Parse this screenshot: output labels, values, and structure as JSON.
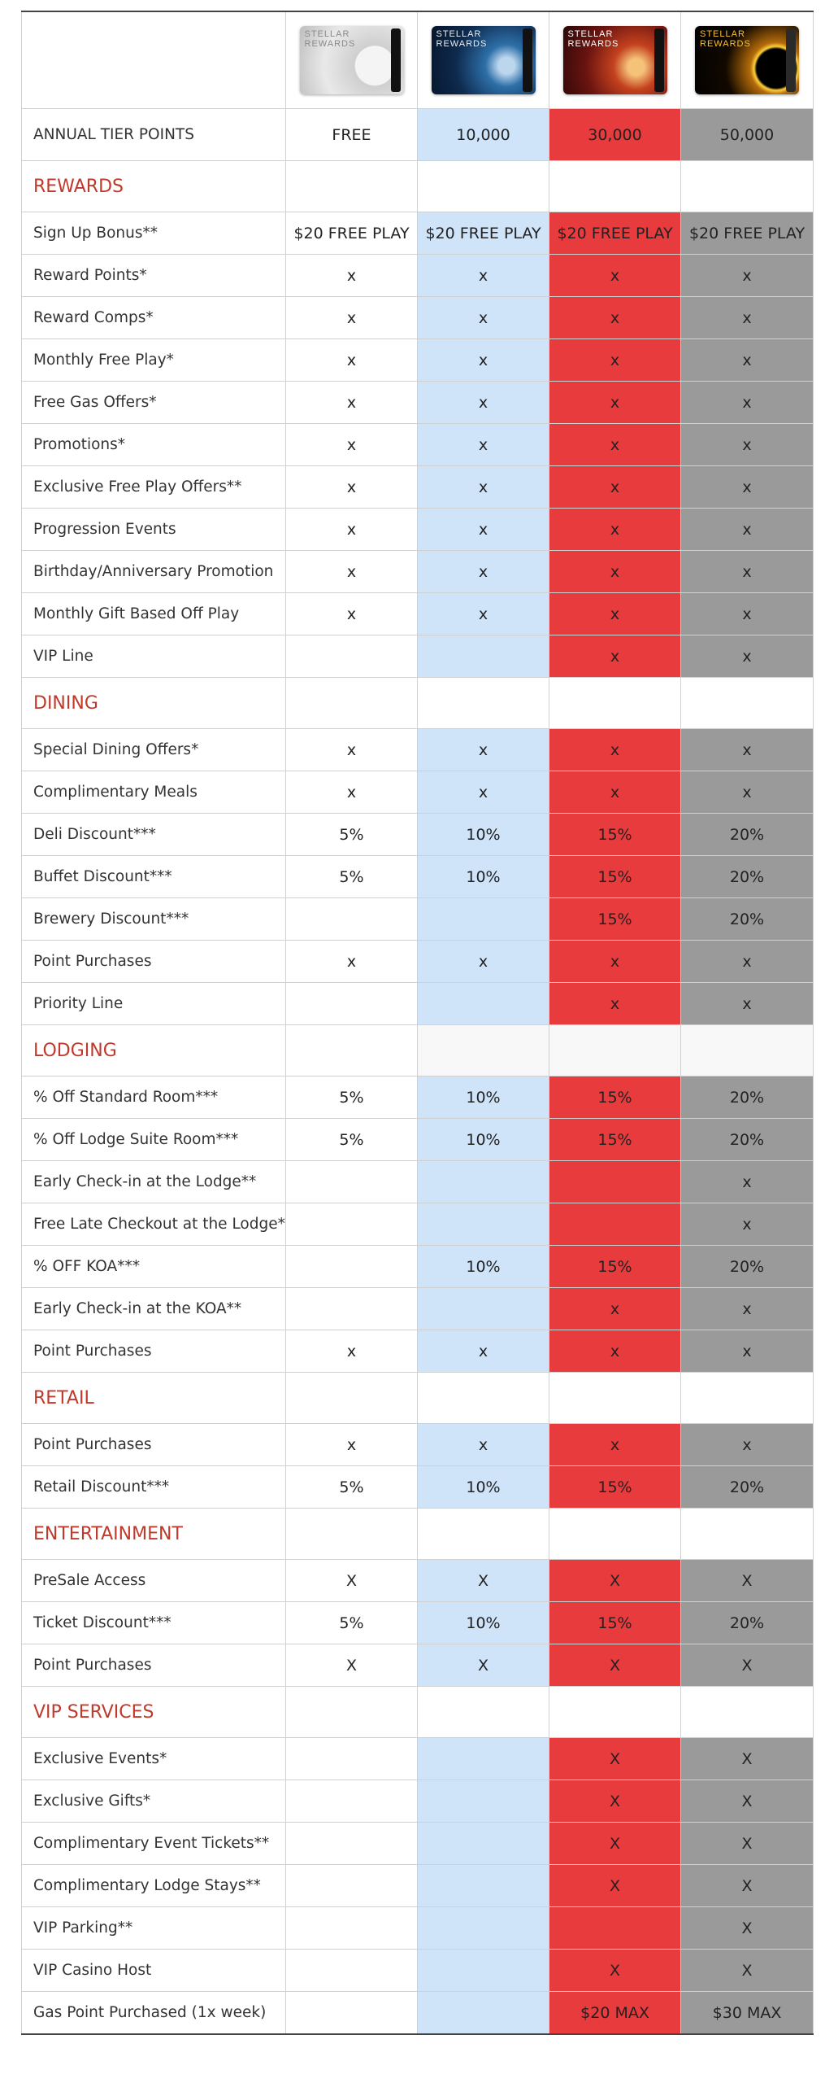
{
  "header": {
    "cards": [
      {
        "brand_line1": "STELLAR",
        "brand_line2": "REWARDS",
        "name": "silver-moon"
      },
      {
        "brand_line1": "STELLAR",
        "brand_line2": "REWARDS",
        "name": "blue-earth"
      },
      {
        "brand_line1": "STELLAR",
        "brand_line2": "REWARDS",
        "name": "red-mars"
      },
      {
        "brand_line1": "STELLAR",
        "brand_line2": "REWARDS",
        "name": "black-eclipse"
      }
    ],
    "points_label": "ANNUAL TIER POINTS",
    "points": [
      "FREE",
      "10,000",
      "30,000",
      "50,000"
    ]
  },
  "sections": [
    {
      "title": "REWARDS",
      "rows": [
        {
          "label": "Sign Up Bonus**",
          "values": [
            "$20 FREE PLAY",
            "$20 FREE PLAY",
            "$20 FREE PLAY",
            "$20 FREE PLAY"
          ]
        },
        {
          "label": "Reward Points*",
          "values": [
            "x",
            "x",
            "x",
            "x"
          ]
        },
        {
          "label": "Reward Comps*",
          "values": [
            "x",
            "x",
            "x",
            "x"
          ]
        },
        {
          "label": "Monthly Free Play*",
          "values": [
            "x",
            "x",
            "x",
            "x"
          ]
        },
        {
          "label": "Free Gas Offers*",
          "values": [
            "x",
            "x",
            "x",
            "x"
          ]
        },
        {
          "label": "Promotions*",
          "values": [
            "x",
            "x",
            "x",
            "x"
          ]
        },
        {
          "label": "Exclusive Free Play Offers**",
          "values": [
            "x",
            "x",
            "x",
            "x"
          ]
        },
        {
          "label": "Progression Events",
          "values": [
            "x",
            "x",
            "x",
            "x"
          ]
        },
        {
          "label": "Birthday/Anniversary Promotion",
          "values": [
            "x",
            "x",
            "x",
            "x"
          ]
        },
        {
          "label": "Monthly Gift Based Off Play",
          "values": [
            "x",
            "x",
            "x",
            "x"
          ]
        },
        {
          "label": "VIP Line",
          "values": [
            "",
            "",
            "x",
            "x"
          ]
        }
      ]
    },
    {
      "title": "DINING",
      "rows": [
        {
          "label": "Special Dining Offers*",
          "values": [
            "x",
            "x",
            "x",
            "x"
          ]
        },
        {
          "label": "Complimentary Meals",
          "values": [
            "x",
            "x",
            "x",
            "x"
          ]
        },
        {
          "label": "Deli Discount***",
          "values": [
            "5%",
            "10%",
            "15%",
            "20%"
          ]
        },
        {
          "label": "Buffet Discount***",
          "values": [
            "5%",
            "10%",
            "15%",
            "20%"
          ]
        },
        {
          "label": "Brewery Discount***",
          "values": [
            "",
            "",
            "15%",
            "20%"
          ]
        },
        {
          "label": "Point Purchases",
          "values": [
            "x",
            "x",
            "x",
            "x"
          ]
        },
        {
          "label": "Priority Line",
          "values": [
            "",
            "",
            "x",
            "x"
          ]
        }
      ]
    },
    {
      "title": "LODGING",
      "rows": [
        {
          "label": "% Off Standard Room***",
          "values": [
            "5%",
            "10%",
            "15%",
            "20%"
          ]
        },
        {
          "label": "% Off Lodge Suite Room***",
          "values": [
            "5%",
            "10%",
            "15%",
            "20%"
          ]
        },
        {
          "label": "Early Check-in at the Lodge**",
          "values": [
            "",
            "",
            "",
            "x"
          ]
        },
        {
          "label": "Free Late Checkout at the Lodge**",
          "values": [
            "",
            "",
            "",
            "x"
          ]
        },
        {
          "label": "% OFF KOA***",
          "values": [
            "",
            "10%",
            "15%",
            "20%"
          ]
        },
        {
          "label": "Early Check-in at the KOA**",
          "values": [
            "",
            "",
            "x",
            "x"
          ]
        },
        {
          "label": "Point Purchases",
          "values": [
            "x",
            "x",
            "x",
            "x"
          ]
        }
      ]
    },
    {
      "title": "RETAIL",
      "rows": [
        {
          "label": "Point Purchases",
          "values": [
            "x",
            "x",
            "x",
            "x"
          ]
        },
        {
          "label": "Retail Discount***",
          "values": [
            "5%",
            "10%",
            "15%",
            "20%"
          ]
        }
      ]
    },
    {
      "title": "ENTERTAINMENT",
      "rows": [
        {
          "label": "PreSale Access",
          "values": [
            "X",
            "X",
            "X",
            "X"
          ]
        },
        {
          "label": "Ticket Discount***",
          "values": [
            "5%",
            "10%",
            "15%",
            "20%"
          ]
        },
        {
          "label": "Point Purchases",
          "values": [
            "X",
            "X",
            "X",
            "X"
          ]
        }
      ]
    },
    {
      "title": "VIP SERVICES",
      "rows": [
        {
          "label": "Exclusive Events*",
          "values": [
            "",
            "",
            "X",
            "X"
          ]
        },
        {
          "label": "Exclusive Gifts*",
          "values": [
            "",
            "",
            "X",
            "X"
          ]
        },
        {
          "label": "Complimentary Event Tickets**",
          "values": [
            "",
            "",
            "X",
            "X"
          ]
        },
        {
          "label": "Complimentary Lodge Stays**",
          "values": [
            "",
            "",
            "X",
            "X"
          ]
        },
        {
          "label": "VIP Parking**",
          "values": [
            "",
            "",
            "",
            "X"
          ]
        },
        {
          "label": "VIP Casino Host",
          "values": [
            "",
            "",
            "X",
            "X"
          ]
        },
        {
          "label": "Gas Point Purchased (1x week)",
          "values": [
            "",
            "",
            "$20 MAX",
            "$30 MAX"
          ]
        }
      ]
    }
  ],
  "colors": {
    "free": "#ffffff",
    "tier_10000": "#cfe3f9",
    "tier_30000": "#e73b3d",
    "tier_50000": "#9a9a9a",
    "section_title": "#c0392b"
  }
}
